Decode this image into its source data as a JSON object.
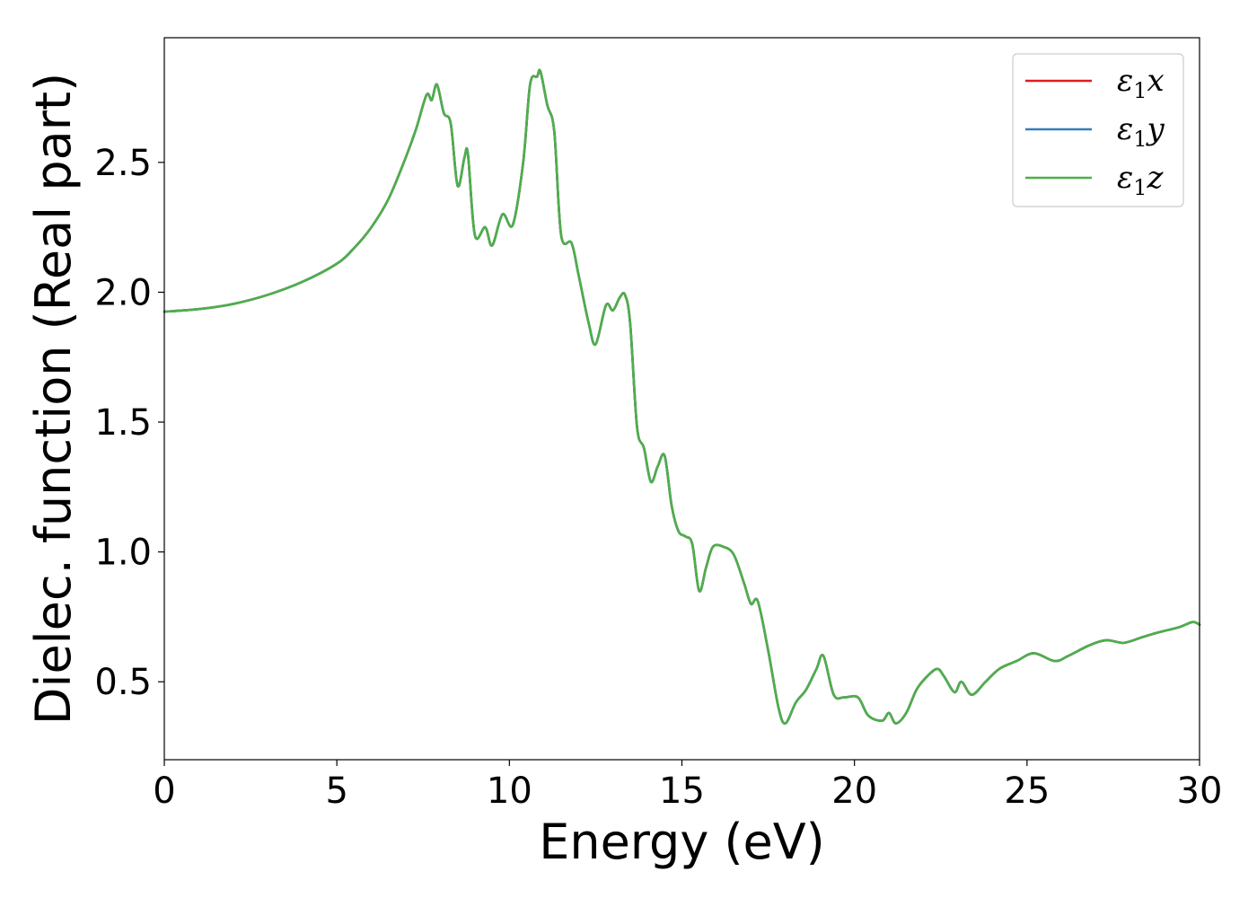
{
  "chart_data": {
    "type": "line",
    "title": "",
    "xlabel": "Energy (eV)",
    "ylabel": "Dielec. function (Real part)",
    "xlim": [
      0,
      30
    ],
    "ylim": [
      0.2,
      2.98
    ],
    "xticks": [
      0,
      5,
      10,
      15,
      20,
      25,
      30
    ],
    "xtick_labels": [
      "0",
      "5",
      "10",
      "15",
      "20",
      "25",
      "30"
    ],
    "yticks": [
      0.5,
      1.0,
      1.5,
      2.0,
      2.5
    ],
    "ytick_labels": [
      "0.5",
      "1.0",
      "1.5",
      "2.0",
      "2.5"
    ],
    "grid": false,
    "legend_position": "top-right",
    "x": [
      0,
      1,
      2,
      3,
      4,
      5,
      5.5,
      6,
      6.5,
      7,
      7.3,
      7.6,
      7.75,
      7.9,
      8.1,
      8.3,
      8.5,
      8.7,
      8.8,
      9.0,
      9.3,
      9.5,
      9.8,
      10.1,
      10.4,
      10.6,
      10.8,
      10.9,
      11.1,
      11.3,
      11.5,
      11.8,
      12.0,
      12.3,
      12.5,
      12.8,
      13.0,
      13.2,
      13.35,
      13.5,
      13.7,
      13.9,
      14.1,
      14.3,
      14.5,
      14.7,
      14.9,
      15.1,
      15.3,
      15.5,
      15.7,
      15.9,
      16.2,
      16.5,
      16.8,
      17.0,
      17.2,
      17.5,
      17.8,
      18.0,
      18.3,
      18.6,
      18.9,
      19.1,
      19.4,
      19.7,
      20.1,
      20.4,
      20.8,
      21.0,
      21.2,
      21.5,
      21.8,
      22.1,
      22.4,
      22.6,
      22.9,
      23.1,
      23.4,
      23.8,
      24.2,
      24.7,
      25.2,
      25.8,
      26.2,
      26.8,
      27.3,
      27.8,
      28.3,
      28.8,
      29.4,
      29.8,
      30
    ],
    "series": [
      {
        "name": "ε₁x",
        "name_symbol": "ε",
        "name_sub": "1",
        "name_suffix": "x",
        "color": "#e41a1c",
        "values": [
          1.925,
          1.935,
          1.955,
          1.99,
          2.04,
          2.11,
          2.17,
          2.25,
          2.36,
          2.52,
          2.63,
          2.76,
          2.74,
          2.8,
          2.69,
          2.65,
          2.41,
          2.52,
          2.53,
          2.22,
          2.25,
          2.18,
          2.3,
          2.26,
          2.5,
          2.8,
          2.83,
          2.85,
          2.72,
          2.62,
          2.22,
          2.19,
          2.07,
          1.88,
          1.8,
          1.95,
          1.93,
          1.98,
          1.99,
          1.88,
          1.48,
          1.4,
          1.27,
          1.33,
          1.37,
          1.18,
          1.08,
          1.06,
          1.03,
          0.85,
          0.94,
          1.02,
          1.02,
          0.99,
          0.88,
          0.8,
          0.81,
          0.62,
          0.4,
          0.34,
          0.42,
          0.47,
          0.55,
          0.6,
          0.45,
          0.44,
          0.44,
          0.37,
          0.35,
          0.38,
          0.34,
          0.38,
          0.47,
          0.52,
          0.55,
          0.52,
          0.46,
          0.5,
          0.45,
          0.5,
          0.55,
          0.58,
          0.61,
          0.58,
          0.6,
          0.64,
          0.66,
          0.65,
          0.67,
          0.69,
          0.71,
          0.73,
          0.72
        ]
      },
      {
        "name": "ε₁y",
        "name_symbol": "ε",
        "name_sub": "1",
        "name_suffix": "y",
        "color": "#377eb8",
        "values": [
          1.925,
          1.935,
          1.955,
          1.99,
          2.04,
          2.11,
          2.17,
          2.25,
          2.36,
          2.52,
          2.63,
          2.76,
          2.74,
          2.8,
          2.69,
          2.65,
          2.41,
          2.52,
          2.53,
          2.22,
          2.25,
          2.18,
          2.3,
          2.26,
          2.5,
          2.8,
          2.83,
          2.85,
          2.72,
          2.62,
          2.22,
          2.19,
          2.07,
          1.88,
          1.8,
          1.95,
          1.93,
          1.98,
          1.99,
          1.88,
          1.48,
          1.4,
          1.27,
          1.33,
          1.37,
          1.18,
          1.08,
          1.06,
          1.03,
          0.85,
          0.94,
          1.02,
          1.02,
          0.99,
          0.88,
          0.8,
          0.81,
          0.62,
          0.4,
          0.34,
          0.42,
          0.47,
          0.55,
          0.6,
          0.45,
          0.44,
          0.44,
          0.37,
          0.35,
          0.38,
          0.34,
          0.38,
          0.47,
          0.52,
          0.55,
          0.52,
          0.46,
          0.5,
          0.45,
          0.5,
          0.55,
          0.58,
          0.61,
          0.58,
          0.6,
          0.64,
          0.66,
          0.65,
          0.67,
          0.69,
          0.71,
          0.73,
          0.72
        ]
      },
      {
        "name": "ε₁z",
        "name_symbol": "ε",
        "name_sub": "1",
        "name_suffix": "z",
        "color": "#4daf4a",
        "values": [
          1.925,
          1.935,
          1.955,
          1.99,
          2.04,
          2.11,
          2.17,
          2.25,
          2.36,
          2.52,
          2.63,
          2.76,
          2.74,
          2.8,
          2.69,
          2.65,
          2.41,
          2.52,
          2.53,
          2.22,
          2.25,
          2.18,
          2.3,
          2.26,
          2.5,
          2.8,
          2.83,
          2.85,
          2.72,
          2.62,
          2.22,
          2.19,
          2.07,
          1.88,
          1.8,
          1.95,
          1.93,
          1.98,
          1.99,
          1.88,
          1.48,
          1.4,
          1.27,
          1.33,
          1.37,
          1.18,
          1.08,
          1.06,
          1.03,
          0.85,
          0.94,
          1.02,
          1.02,
          0.99,
          0.88,
          0.8,
          0.81,
          0.62,
          0.4,
          0.34,
          0.42,
          0.47,
          0.55,
          0.6,
          0.45,
          0.44,
          0.44,
          0.37,
          0.35,
          0.38,
          0.34,
          0.38,
          0.47,
          0.52,
          0.55,
          0.52,
          0.46,
          0.5,
          0.45,
          0.5,
          0.55,
          0.58,
          0.61,
          0.58,
          0.6,
          0.64,
          0.66,
          0.65,
          0.67,
          0.69,
          0.71,
          0.73,
          0.72
        ]
      }
    ]
  }
}
